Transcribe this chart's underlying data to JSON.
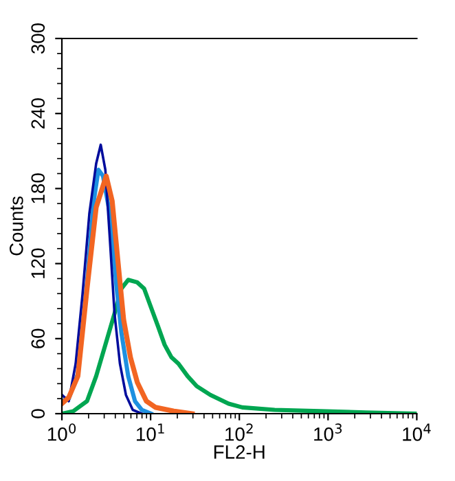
{
  "chart_data": {
    "type": "line",
    "xlabel": "FL2-H",
    "ylabel": "Counts",
    "log": "x",
    "xlim": [
      1,
      10000
    ],
    "xticks": [
      {
        "value": 1,
        "label": "10$^{0}$"
      },
      {
        "value": 10,
        "label": "10$^{1}$"
      },
      {
        "value": 100,
        "label": "10$^{2}$"
      },
      {
        "value": 1000,
        "label": "10$^{3}$"
      },
      {
        "value": 10000,
        "label": "10$^{4}$"
      }
    ],
    "ylim": [
      0,
      300
    ],
    "yticks": [
      0,
      60,
      120,
      180,
      240,
      300
    ],
    "grid": false,
    "legend": false,
    "marker": "none",
    "line_style": "solid",
    "series": [
      {
        "color": "#00a651",
        "x": [
          1,
          1.345,
          1.921,
          2.435,
          3.09,
          3.92,
          4.68,
          5.59,
          7.08,
          8.45,
          10.1,
          12.1,
          14.4,
          17.2,
          20.6,
          26.1,
          33.1,
          47.2,
          75.8,
          108,
          250,
          815,
          2680,
          10000
        ],
        "values": [
          0,
          2,
          10,
          30,
          55,
          80,
          100,
          107,
          105,
          100,
          85,
          70,
          55,
          45,
          40,
          30,
          22,
          15,
          8,
          5,
          3,
          2,
          1,
          0
        ]
      },
      {
        "color": "#1e90e0",
        "x": [
          1,
          1.195,
          1.515,
          1.921,
          2.29,
          2.58,
          2.91,
          3.47,
          4.15,
          4.68,
          5.59,
          6.67,
          7.97,
          10.1
        ],
        "values": [
          10,
          12,
          32,
          105,
          170,
          195,
          190,
          160,
          100,
          65,
          30,
          10,
          3,
          0
        ]
      },
      {
        "color": "#000c9c",
        "x": [
          1,
          1.195,
          1.43,
          1.706,
          2.04,
          2.435,
          2.74,
          3.09,
          3.47,
          3.92,
          4.51,
          5.27,
          6.29,
          7.97
        ],
        "values": [
          15,
          10,
          40,
          95,
          160,
          200,
          215,
          195,
          140,
          80,
          40,
          15,
          3,
          0
        ]
      },
      {
        "color": "#f26522",
        "x": [
          1,
          1.195,
          1.515,
          1.921,
          2.435,
          3.16,
          3.69,
          4.31,
          4.97,
          5.93,
          7.08,
          8.97,
          11.4,
          18.3,
          29.4
        ],
        "values": [
          8,
          13,
          30,
          100,
          165,
          190,
          170,
          120,
          75,
          45,
          25,
          10,
          5,
          2,
          0
        ]
      }
    ]
  }
}
